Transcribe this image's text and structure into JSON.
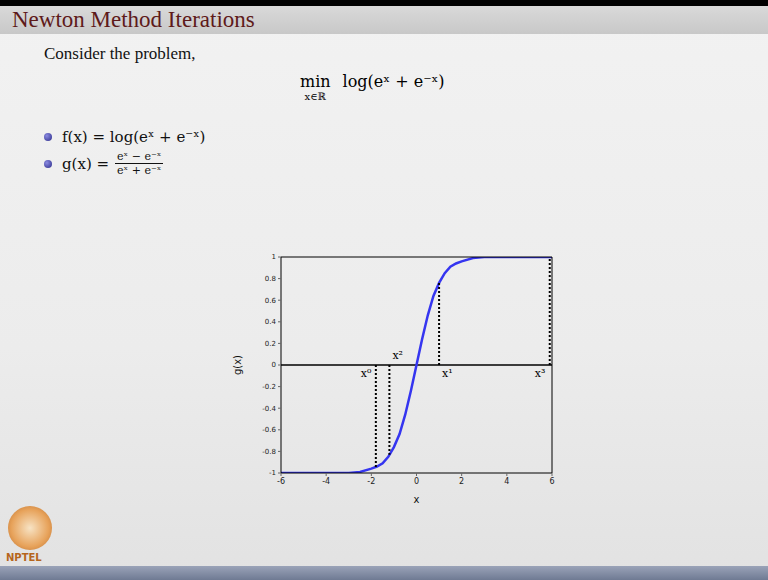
{
  "title": "Newton Method Iterations",
  "intro": "Consider the problem,",
  "formula": {
    "operator": "min",
    "subscript": "x∈ℝ",
    "expression": "log(eˣ + e⁻ˣ)"
  },
  "bullets": [
    {
      "text": "f(x) = log(eˣ + e⁻ˣ)"
    },
    {
      "lhs": "g(x) =",
      "numerator": "eˣ − e⁻ˣ",
      "denominator": "eˣ + e⁻ˣ"
    }
  ],
  "logo": "NPTEL",
  "chart_data": {
    "type": "line",
    "x_label": "x",
    "y_label": "g(x)",
    "xlim": [
      -6,
      6
    ],
    "xticks": [
      -6,
      -4,
      -2,
      0,
      2,
      4,
      6
    ],
    "ylim": [
      -1,
      1
    ],
    "yticks": [
      -1,
      -0.8,
      -0.6,
      -0.4,
      -0.2,
      0,
      0.2,
      0.4,
      0.6,
      0.8,
      1
    ],
    "grid": false,
    "series": [
      {
        "color": "#3535f0",
        "x": [
          -6,
          -5,
          -4,
          -3.5,
          -3,
          -2.5,
          -2,
          -1.75,
          -1.5,
          -1.25,
          -1,
          -0.75,
          -0.5,
          -0.25,
          0,
          0.25,
          0.5,
          0.75,
          1,
          1.25,
          1.5,
          1.75,
          2,
          2.5,
          3,
          3.5,
          4,
          5,
          6
        ],
        "values": [
          -1,
          -1,
          -1,
          -1,
          -1,
          -0.99,
          -0.96,
          -0.94,
          -0.91,
          -0.85,
          -0.76,
          -0.64,
          -0.46,
          -0.24,
          0,
          0.24,
          0.46,
          0.64,
          0.76,
          0.85,
          0.91,
          0.94,
          0.96,
          0.99,
          1,
          1,
          1,
          1,
          1
        ]
      }
    ],
    "annotations": [
      {
        "label": "x⁰",
        "x": -1.8,
        "value": -0.95
      },
      {
        "label": "x²",
        "x": -1.2,
        "value": -0.83
      },
      {
        "label": "x¹",
        "x": 1.0,
        "value": 0.76
      },
      {
        "label": "x³",
        "x": 5.9,
        "value": 1
      }
    ],
    "annotation_color": "#000000",
    "annotation_line_style": "dotted"
  }
}
